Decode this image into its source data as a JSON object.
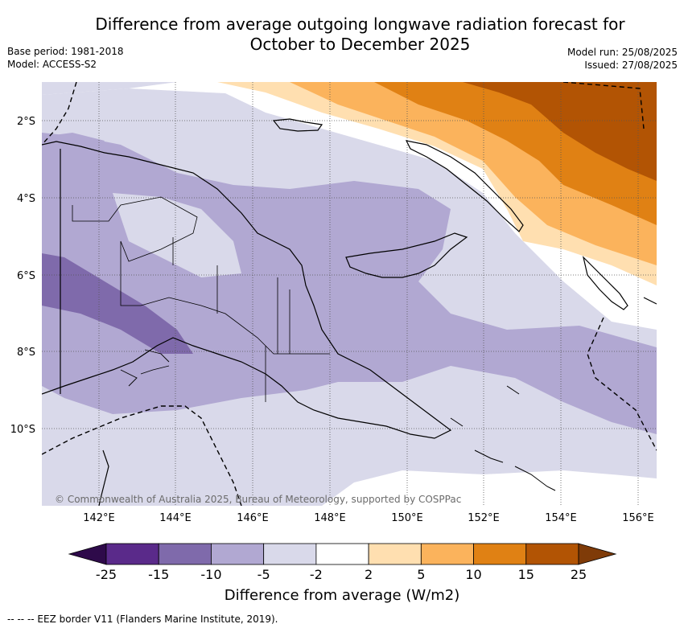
{
  "title_line1": "Difference from average outgoing longwave radiation forecast for",
  "title_line2": "October to December 2025",
  "meta_left": {
    "base_period": "Base period: 1981-2018",
    "model": "Model: ACCESS-S2"
  },
  "meta_right": {
    "model_run": "Model run: 25/08/2025",
    "issued": "Issued: 27/08/2025"
  },
  "lat_labels": [
    "2°S",
    "4°S",
    "6°S",
    "8°S",
    "10°S"
  ],
  "lon_labels": [
    "142°E",
    "144°E",
    "146°E",
    "148°E",
    "150°E",
    "152°E",
    "154°E",
    "156°E"
  ],
  "copyright": "© Commonwealth of Australia 2025, Bureau of Meteorology, supported by COSPPac",
  "colorbar": {
    "labels": [
      "-25",
      "-15",
      "-10",
      "-5",
      "-2",
      "2",
      "5",
      "10",
      "15",
      "25"
    ],
    "colors": [
      "#2e0a4a",
      "#5a2a8a",
      "#7f6aab",
      "#b1a8d2",
      "#d9d9ea",
      "#ffffff",
      "#ffdfb0",
      "#fbb35c",
      "#e08114",
      "#b25404",
      "#7f3b08"
    ],
    "title": "Difference from average (W/m2)"
  },
  "legend_text": "--  --  -- EEZ border V11 (Flanders Marine Institute, 2019)."
}
